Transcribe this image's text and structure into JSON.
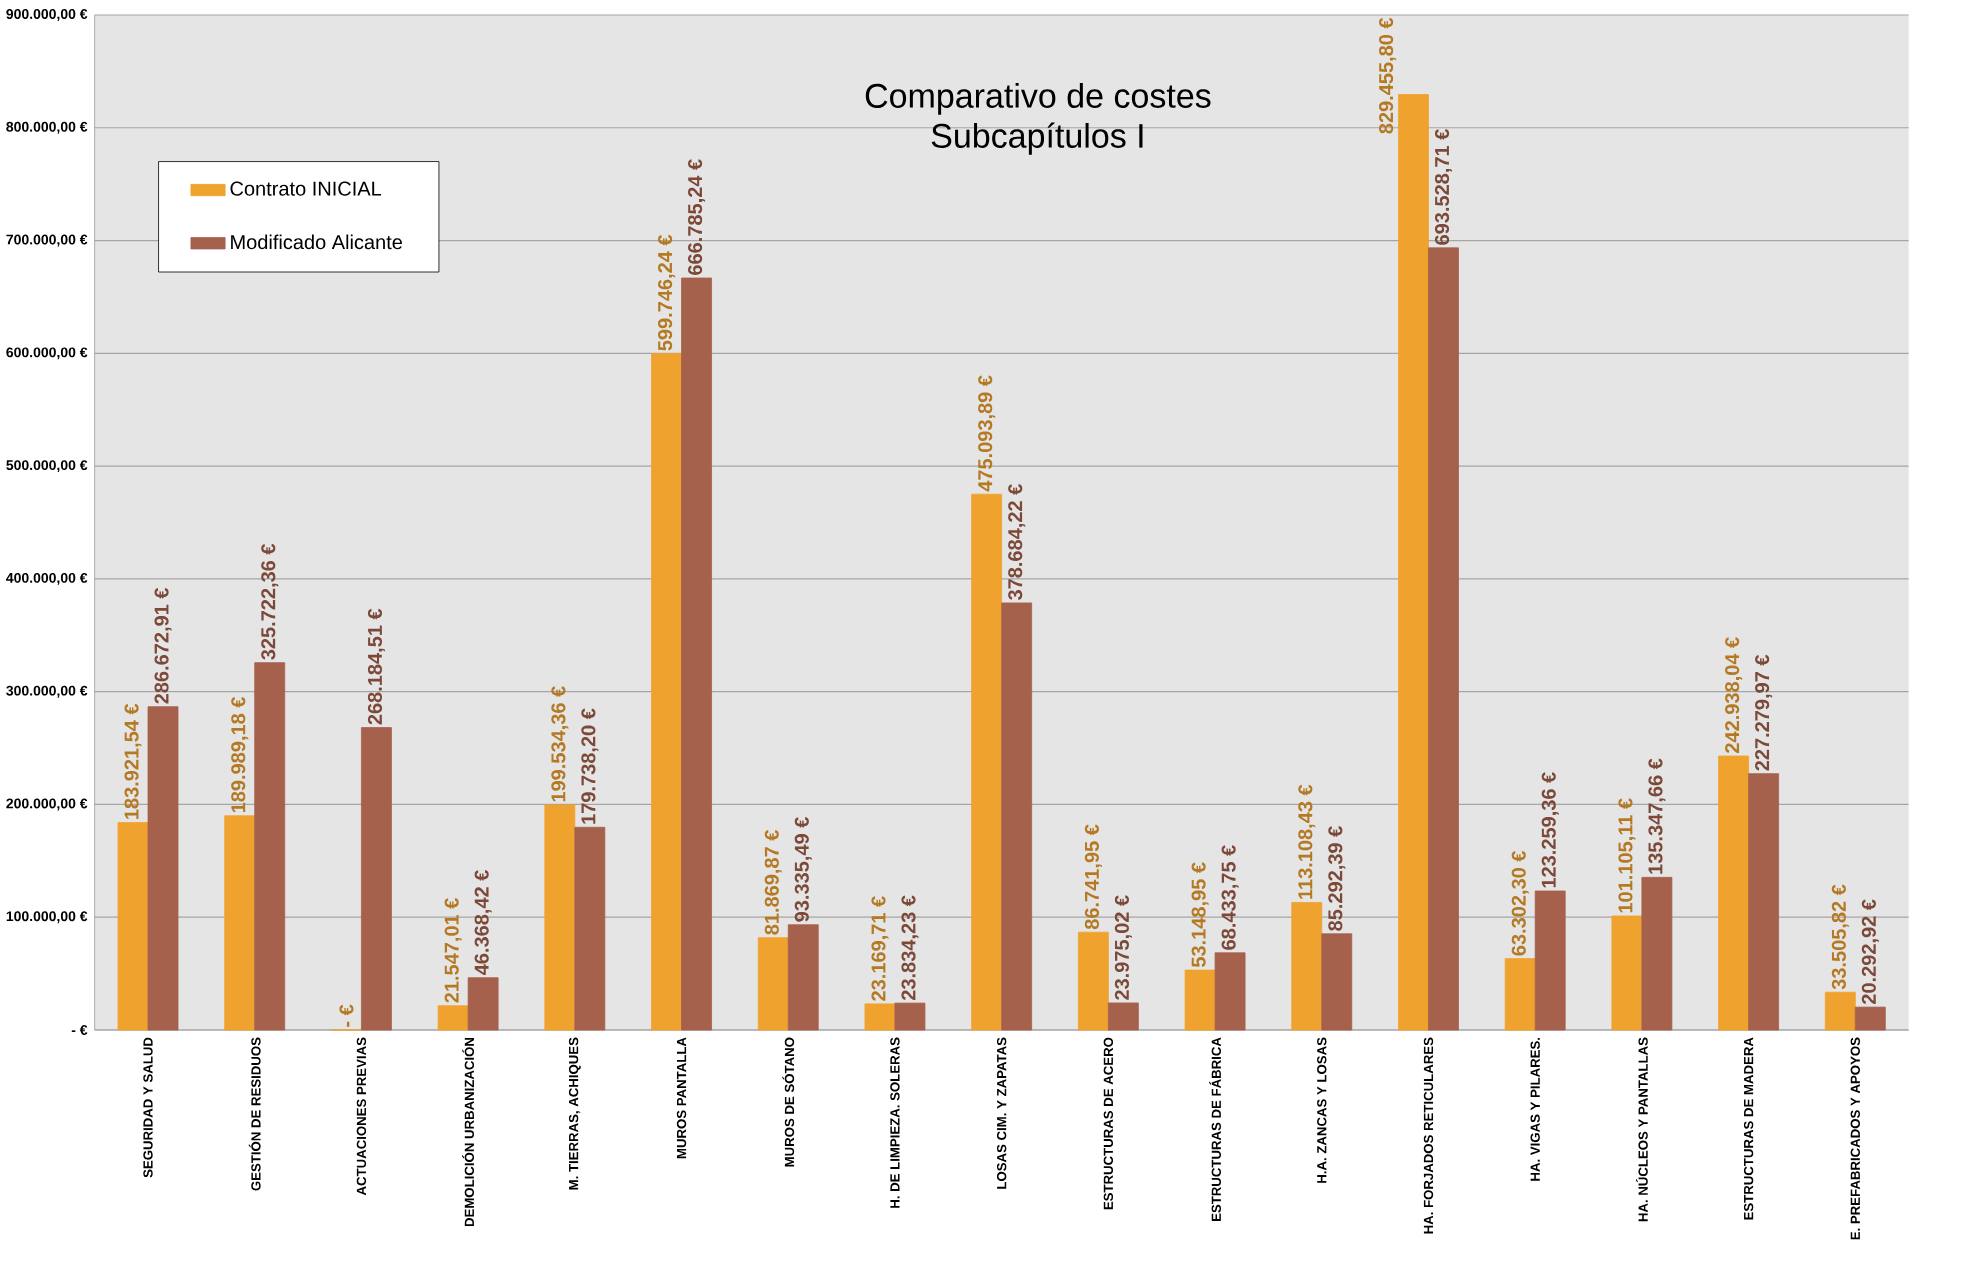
{
  "chart_data": {
    "type": "bar",
    "title": "Comparativo de costes",
    "subtitle": "Subcapítulos I",
    "categories": [
      "SEGURIDAD Y SALUD",
      "GESTIÓN DE RESIDUOS",
      "ACTUACIONES PREVIAS",
      "DEMOLICIÓN URBANIZACIÓN",
      "M. TIERRAS, ACHIQUES",
      "MUROS PANTALLA",
      "MUROS DE SÓTANO",
      "H. DE LIMPIEZA. SOLERAS",
      "LOSAS CIM. Y ZAPATAS",
      "ESTRUCTURAS DE ACERO",
      "ESTRUCTURAS DE FÁBRICA",
      "H.A. ZANCAS Y LOSAS",
      "HA. FORJADOS RETICULARES",
      "HA. VIGAS Y PILARES.",
      "HA. NÚCLEOS Y PANTALLAS",
      "ESTRUCTURAS DE MADERA",
      "E. PREFABRICADOS Y APOYOS"
    ],
    "series": [
      {
        "name": "Contrato INICIAL",
        "color": "#f0a22e",
        "values": [
          183921.54,
          189989.18,
          0,
          21547.01,
          199534.36,
          599746.24,
          81869.87,
          23169.71,
          475093.89,
          86741.95,
          53148.95,
          113108.43,
          829455.8,
          63302.3,
          101105.11,
          242938.04,
          33505.82
        ],
        "value_labels": [
          "183.921,54 €",
          "189.989,18 €",
          "- €",
          "21.547,01 €",
          "199.534,36 €",
          "599.746,24 €",
          "81.869,87 €",
          "23.169,71 €",
          "475.093,89 €",
          "86.741,95 €",
          "53.148,95 €",
          "113.108,43 €",
          "829.455,80 €",
          "63.302,30 €",
          "101.105,11 €",
          "242.938,04 €",
          "33.505,82 €"
        ]
      },
      {
        "name": "Modificado Alicante",
        "color": "#a5614c",
        "values": [
          286672.91,
          325722.36,
          268184.51,
          46368.42,
          179738.2,
          666785.24,
          93335.49,
          23834.23,
          378684.22,
          23975.02,
          68433.75,
          85292.39,
          693528.71,
          123259.36,
          135347.66,
          227279.97,
          20292.92
        ],
        "value_labels": [
          "286.672,91 €",
          "325.722,36 €",
          "268.184,51 €",
          "46.368,42 €",
          "179.738,20 €",
          "666.785,24 €",
          "93.335,49 €",
          "23.834,23 €",
          "378.684,22 €",
          "23.975,02 €",
          "68.433,75 €",
          "85.292,39 €",
          "693.528,71 €",
          "123.259,36 €",
          "135.347,66 €",
          "227.279,97 €",
          "20.292,92 €"
        ]
      }
    ],
    "ylim": [
      0,
      900000
    ],
    "yticks": [
      {
        "value": 0,
        "label": "- €"
      },
      {
        "value": 100000,
        "label": "100.000,00 €"
      },
      {
        "value": 200000,
        "label": "200.000,00 €"
      },
      {
        "value": 300000,
        "label": "300.000,00 €"
      },
      {
        "value": 400000,
        "label": "400.000,00 €"
      },
      {
        "value": 500000,
        "label": "500.000,00 €"
      },
      {
        "value": 600000,
        "label": "600.000,00 €"
      },
      {
        "value": 700000,
        "label": "700.000,00 €"
      },
      {
        "value": 800000,
        "label": "800.000,00 €"
      },
      {
        "value": 900000,
        "label": "900.000,00 €"
      }
    ],
    "grid": "y",
    "legend": "top left"
  }
}
